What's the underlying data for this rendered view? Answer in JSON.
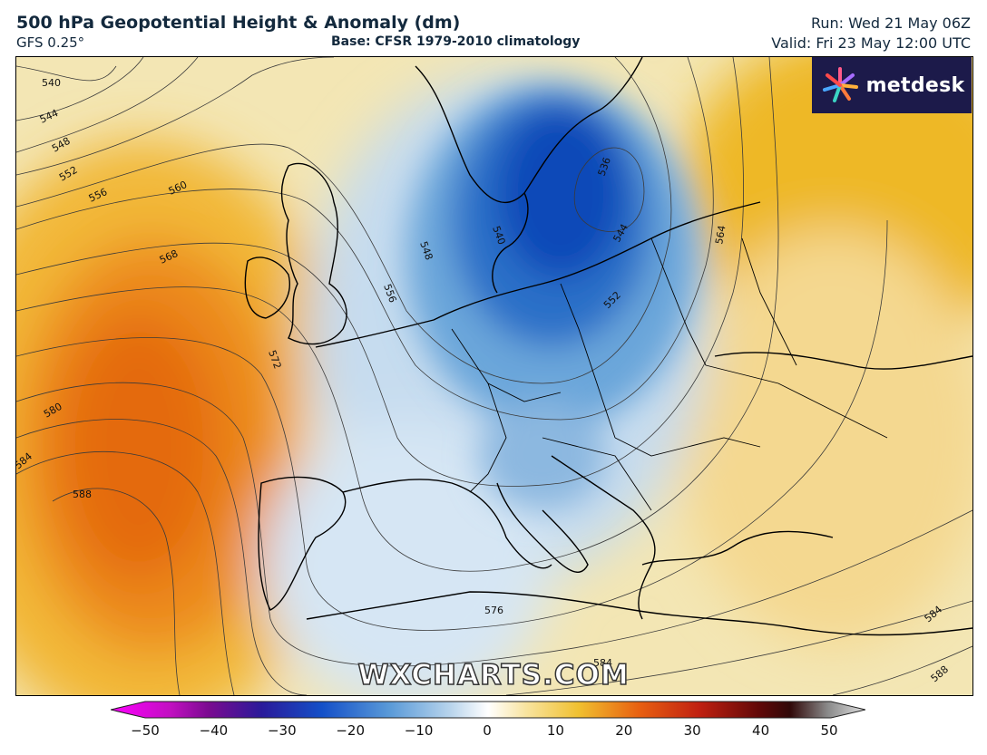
{
  "header": {
    "title": "500 hPa Geopotential Height & Anomaly (dm)",
    "model": "GFS 0.25°",
    "base": "Base: CFSR 1979-2010 climatology",
    "run": "Run: Wed 21 May 06Z",
    "valid": "Valid: Fri 23 May 12:00 UTC"
  },
  "branding": {
    "logo": "metdesk",
    "logo_icon": "metdesk-pinwheel-icon",
    "watermark": "WXCHARTS.COM"
  },
  "colorbar": {
    "ticks": [
      "−50",
      "−40",
      "−30",
      "−20",
      "−10",
      "0",
      "10",
      "20",
      "30",
      "40",
      "50"
    ],
    "tick_values": [
      -50,
      -40,
      -30,
      -20,
      -10,
      0,
      10,
      20,
      30,
      40,
      50
    ],
    "colors": {
      "-50": "#ff00ff",
      "-40": "#7a0a90",
      "-30": "#1a1a9a",
      "-20": "#1450c8",
      "-10": "#a8c8e8",
      "0": "#ffffff",
      "10": "#f0c030",
      "20": "#e86010",
      "30": "#c02010",
      "40": "#300808",
      "50": "#d0d0d0"
    }
  },
  "contour_labels": [
    "540",
    "544",
    "548",
    "552",
    "556",
    "560",
    "568",
    "572",
    "580",
    "584",
    "588",
    "536",
    "540",
    "544",
    "548",
    "552",
    "556",
    "564",
    "576",
    "584",
    "584",
    "588"
  ],
  "anomaly_colors": {
    "strong_positive": "#e8700c",
    "moderate_positive": "#f0b030",
    "weak_positive": "#f6e0a0",
    "neutral": "#fbf6e6",
    "weak_negative": "#c8dcee",
    "moderate_negative": "#4a90d0",
    "strong_negative": "#0a4cc0"
  }
}
